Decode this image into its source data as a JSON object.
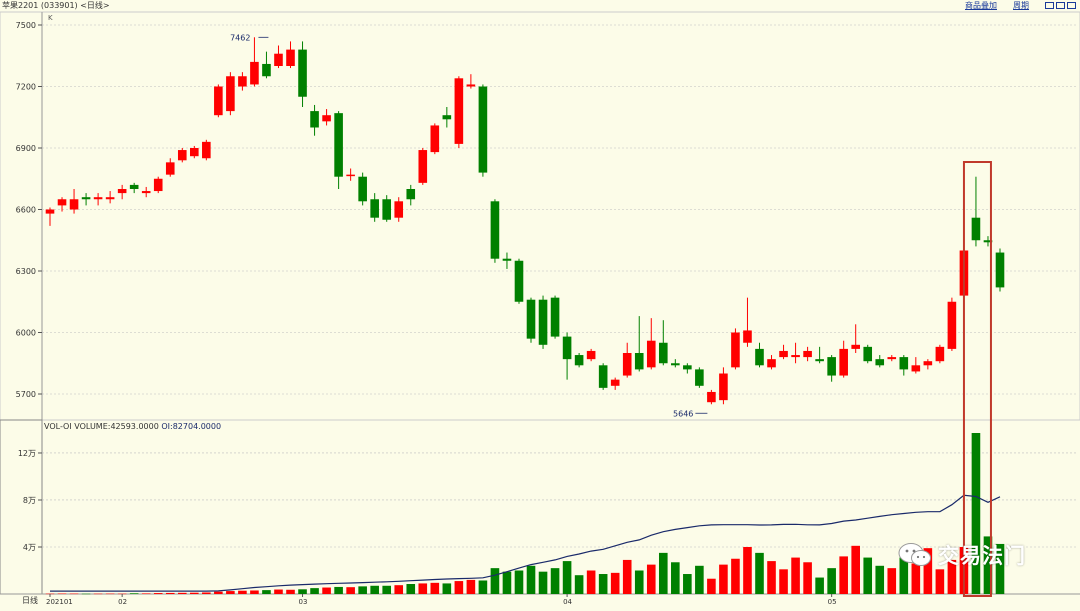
{
  "header": {
    "title": "苹果2201 (033901) <日线>",
    "link_overlay": "商品叠加",
    "link_period": "周期"
  },
  "price_axis": {
    "unit_mark": "K",
    "ticks": [
      "7500",
      "7200",
      "6900",
      "6600",
      "6300",
      "6000",
      "5700"
    ]
  },
  "volume_axis": {
    "ticks": [
      "12万",
      "8万",
      "4万"
    ],
    "corner_label": "日线"
  },
  "date_labels": [
    "202101",
    "02",
    "03",
    "04",
    "05"
  ],
  "volume_info": {
    "label": "VOL-OI VOLUME:42593.0000",
    "oi": "OI:82704.0000"
  },
  "annotations": {
    "high_label": "7462",
    "low_label": "5646"
  },
  "watermark": {
    "text": "交易法门"
  },
  "colors": {
    "up": "#ff0000",
    "down": "#008000",
    "oi_line": "#1a2a6a",
    "highlight": "#c0392b",
    "background": "#fcfce8",
    "grid": "#bdbdbd"
  },
  "chart_data": [
    {
      "type": "candlestick",
      "title": "苹果2201 (033901) <日线>",
      "ylim": [
        5650,
        7520
      ],
      "grid": true,
      "up_color": "#ff0000",
      "down_color": "#008000",
      "month_labels": [
        "202101",
        "02",
        "03",
        "04",
        "05"
      ],
      "candles": [
        [
          6580,
          6600,
          6520,
          6610
        ],
        [
          6620,
          6650,
          6590,
          6660
        ],
        [
          6600,
          6650,
          6580,
          6700
        ],
        [
          6660,
          6650,
          6620,
          6680
        ],
        [
          6650,
          6660,
          6620,
          6680
        ],
        [
          6650,
          6660,
          6630,
          6690
        ],
        [
          6680,
          6700,
          6650,
          6720
        ],
        [
          6720,
          6700,
          6680,
          6730
        ],
        [
          6680,
          6690,
          6660,
          6710
        ],
        [
          6690,
          6750,
          6680,
          6760
        ],
        [
          6770,
          6830,
          6760,
          6850
        ],
        [
          6840,
          6890,
          6830,
          6900
        ],
        [
          6860,
          6900,
          6850,
          6910
        ],
        [
          6850,
          6930,
          6840,
          6940
        ],
        [
          7060,
          7200,
          7050,
          7210
        ],
        [
          7080,
          7250,
          7060,
          7270
        ],
        [
          7200,
          7250,
          7180,
          7270
        ],
        [
          7210,
          7320,
          7200,
          7440
        ],
        [
          7310,
          7250,
          7240,
          7370
        ],
        [
          7300,
          7360,
          7290,
          7400
        ],
        [
          7300,
          7380,
          7290,
          7420
        ],
        [
          7380,
          7150,
          7100,
          7420
        ],
        [
          7080,
          7000,
          6960,
          7110
        ],
        [
          7030,
          7060,
          7010,
          7090
        ],
        [
          7070,
          6760,
          6700,
          7080
        ],
        [
          6770,
          6770,
          6740,
          6800
        ],
        [
          6760,
          6640,
          6620,
          6780
        ],
        [
          6650,
          6560,
          6540,
          6680
        ],
        [
          6650,
          6550,
          6540,
          6670
        ],
        [
          6560,
          6640,
          6540,
          6660
        ],
        [
          6700,
          6650,
          6620,
          6720
        ],
        [
          6730,
          6890,
          6720,
          6900
        ],
        [
          6880,
          7010,
          6870,
          7020
        ],
        [
          7060,
          7040,
          7000,
          7100
        ],
        [
          6920,
          7240,
          6900,
          7250
        ],
        [
          7200,
          7210,
          7190,
          7260
        ],
        [
          7200,
          6780,
          6760,
          7210
        ],
        [
          6640,
          6360,
          6340,
          6650
        ],
        [
          6360,
          6350,
          6310,
          6390
        ],
        [
          6350,
          6150,
          6140,
          6360
        ],
        [
          6160,
          5970,
          5950,
          6170
        ],
        [
          6160,
          5940,
          5920,
          6180
        ],
        [
          6170,
          5980,
          5970,
          6180
        ],
        [
          5980,
          5870,
          5770,
          6000
        ],
        [
          5890,
          5840,
          5830,
          5900
        ],
        [
          5870,
          5910,
          5860,
          5920
        ],
        [
          5840,
          5730,
          5720,
          5850
        ],
        [
          5740,
          5770,
          5720,
          5780
        ],
        [
          5790,
          5900,
          5780,
          5950
        ],
        [
          5900,
          5820,
          5810,
          6080
        ],
        [
          5830,
          5960,
          5820,
          6070
        ],
        [
          5950,
          5850,
          5840,
          6060
        ],
        [
          5850,
          5840,
          5830,
          5870
        ],
        [
          5840,
          5820,
          5800,
          5850
        ],
        [
          5820,
          5740,
          5730,
          5830
        ],
        [
          5660,
          5710,
          5650,
          5720
        ],
        [
          5670,
          5800,
          5650,
          5830
        ],
        [
          5830,
          6000,
          5820,
          6020
        ],
        [
          5950,
          6010,
          5930,
          6170
        ],
        [
          5920,
          5840,
          5830,
          5950
        ],
        [
          5830,
          5870,
          5820,
          5890
        ],
        [
          5880,
          5910,
          5870,
          5940
        ],
        [
          5880,
          5890,
          5850,
          5950
        ],
        [
          5880,
          5910,
          5860,
          5930
        ],
        [
          5870,
          5860,
          5850,
          5930
        ],
        [
          5880,
          5790,
          5760,
          5890
        ],
        [
          5790,
          5920,
          5780,
          5960
        ],
        [
          5920,
          5940,
          5900,
          6040
        ],
        [
          5930,
          5860,
          5850,
          5940
        ],
        [
          5870,
          5840,
          5830,
          5890
        ],
        [
          5870,
          5880,
          5860,
          5890
        ],
        [
          5880,
          5820,
          5790,
          5890
        ],
        [
          5810,
          5840,
          5800,
          5880
        ],
        [
          5840,
          5860,
          5820,
          5870
        ],
        [
          5860,
          5930,
          5850,
          5940
        ],
        [
          5920,
          6150,
          5910,
          6170
        ],
        [
          6180,
          6400,
          6170,
          6420
        ],
        [
          6560,
          6450,
          6420,
          6760
        ],
        [
          6450,
          6440,
          6420,
          6470
        ],
        [
          6390,
          6220,
          6200,
          6410
        ]
      ]
    },
    {
      "type": "bar",
      "title": "VOL-OI",
      "series": [
        {
          "name": "VOLUME",
          "values": [
            300,
            400,
            350,
            250,
            300,
            350,
            300,
            600,
            500,
            800,
            900,
            1000,
            1100,
            1300,
            2000,
            2500,
            2800,
            3000,
            3300,
            3800,
            3600,
            4000,
            5000,
            5500,
            6000,
            5800,
            6500,
            7000,
            7000,
            7500,
            8500,
            9000,
            9500,
            9000,
            11000,
            12000,
            11500,
            22000,
            19000,
            20000,
            24000,
            19000,
            22000,
            28000,
            16000,
            20000,
            17000,
            18000,
            29000,
            20000,
            25000,
            35000,
            27000,
            17000,
            24000,
            13000,
            25000,
            30000,
            40000,
            35000,
            28000,
            21000,
            31000,
            27000,
            14000,
            22000,
            32000,
            41000,
            31000,
            24000,
            22000,
            31000,
            26000,
            39000,
            21000,
            29000,
            40000,
            137000,
            49000,
            42593
          ]
        },
        {
          "name": "OI",
          "values": [
            2500,
            2500,
            2500,
            2500,
            2500,
            2500,
            2500,
            2500,
            2500,
            2500,
            2500,
            2500,
            2500,
            2500,
            2600,
            3500,
            4500,
            5500,
            6200,
            7000,
            7600,
            8000,
            8400,
            8800,
            9100,
            9400,
            9700,
            10000,
            10400,
            10800,
            11300,
            11800,
            12300,
            12800,
            13100,
            13400,
            13800,
            16000,
            19000,
            22000,
            25000,
            27000,
            29000,
            32000,
            34000,
            36500,
            38000,
            41000,
            44000,
            46000,
            50000,
            53000,
            55000,
            56500,
            58000,
            58800,
            59000,
            59000,
            59000,
            58700,
            58800,
            59200,
            59300,
            58900,
            58800,
            60000,
            62000,
            63000,
            64500,
            66000,
            67500,
            68500,
            69500,
            70000,
            70000,
            76000,
            84000,
            83000,
            78000,
            82704
          ]
        }
      ],
      "ylim": [
        0,
        140000
      ],
      "ytick_labels": [
        "12万",
        "8万",
        "4万"
      ],
      "ylabel": "日线"
    }
  ]
}
